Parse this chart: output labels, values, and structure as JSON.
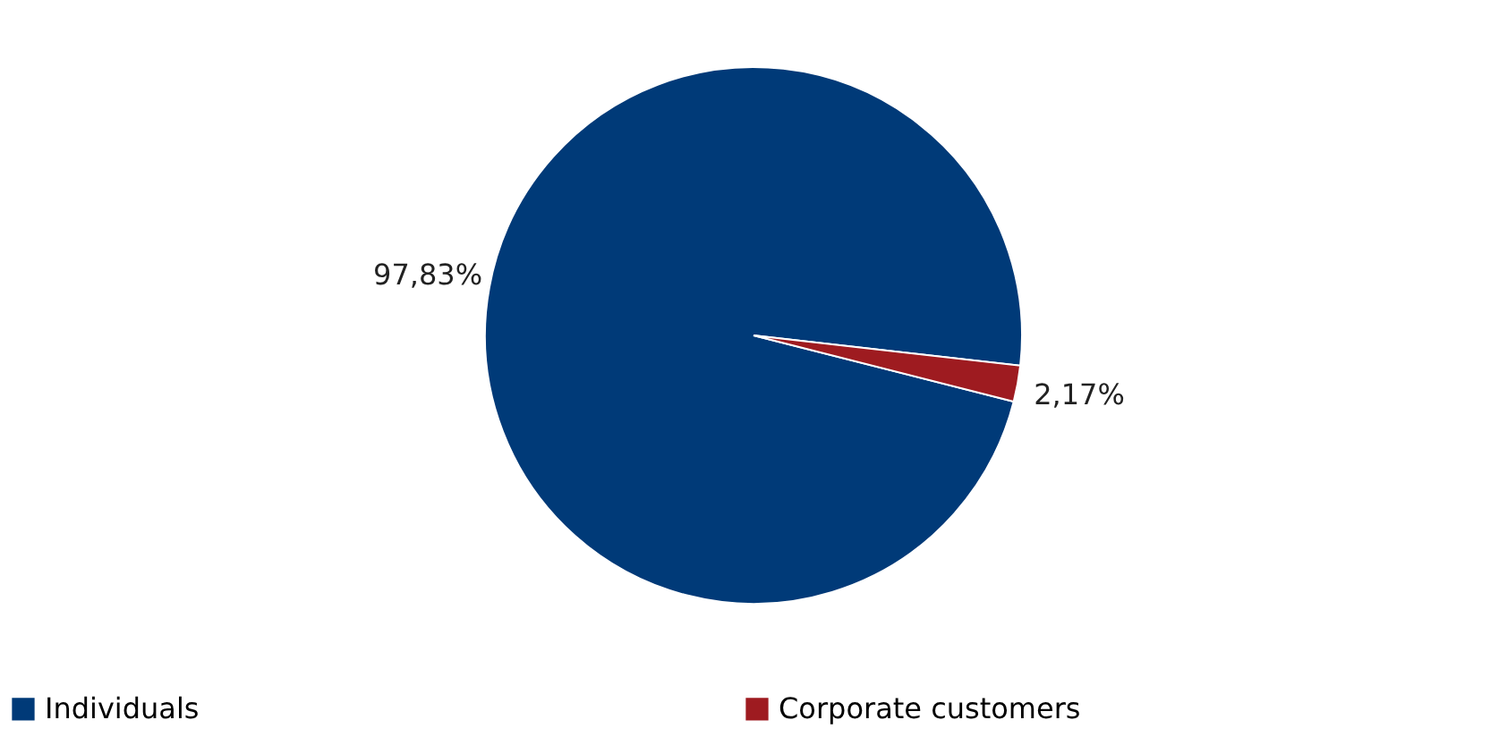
{
  "chart_data": {
    "type": "pie",
    "categories": [
      "Individuals",
      "Corporate customers"
    ],
    "values": [
      97.83,
      2.17
    ],
    "colors": [
      "#003a78",
      "#9e1b20"
    ],
    "value_labels": [
      "97,83%",
      "2,17%"
    ],
    "legend": "bottom"
  }
}
